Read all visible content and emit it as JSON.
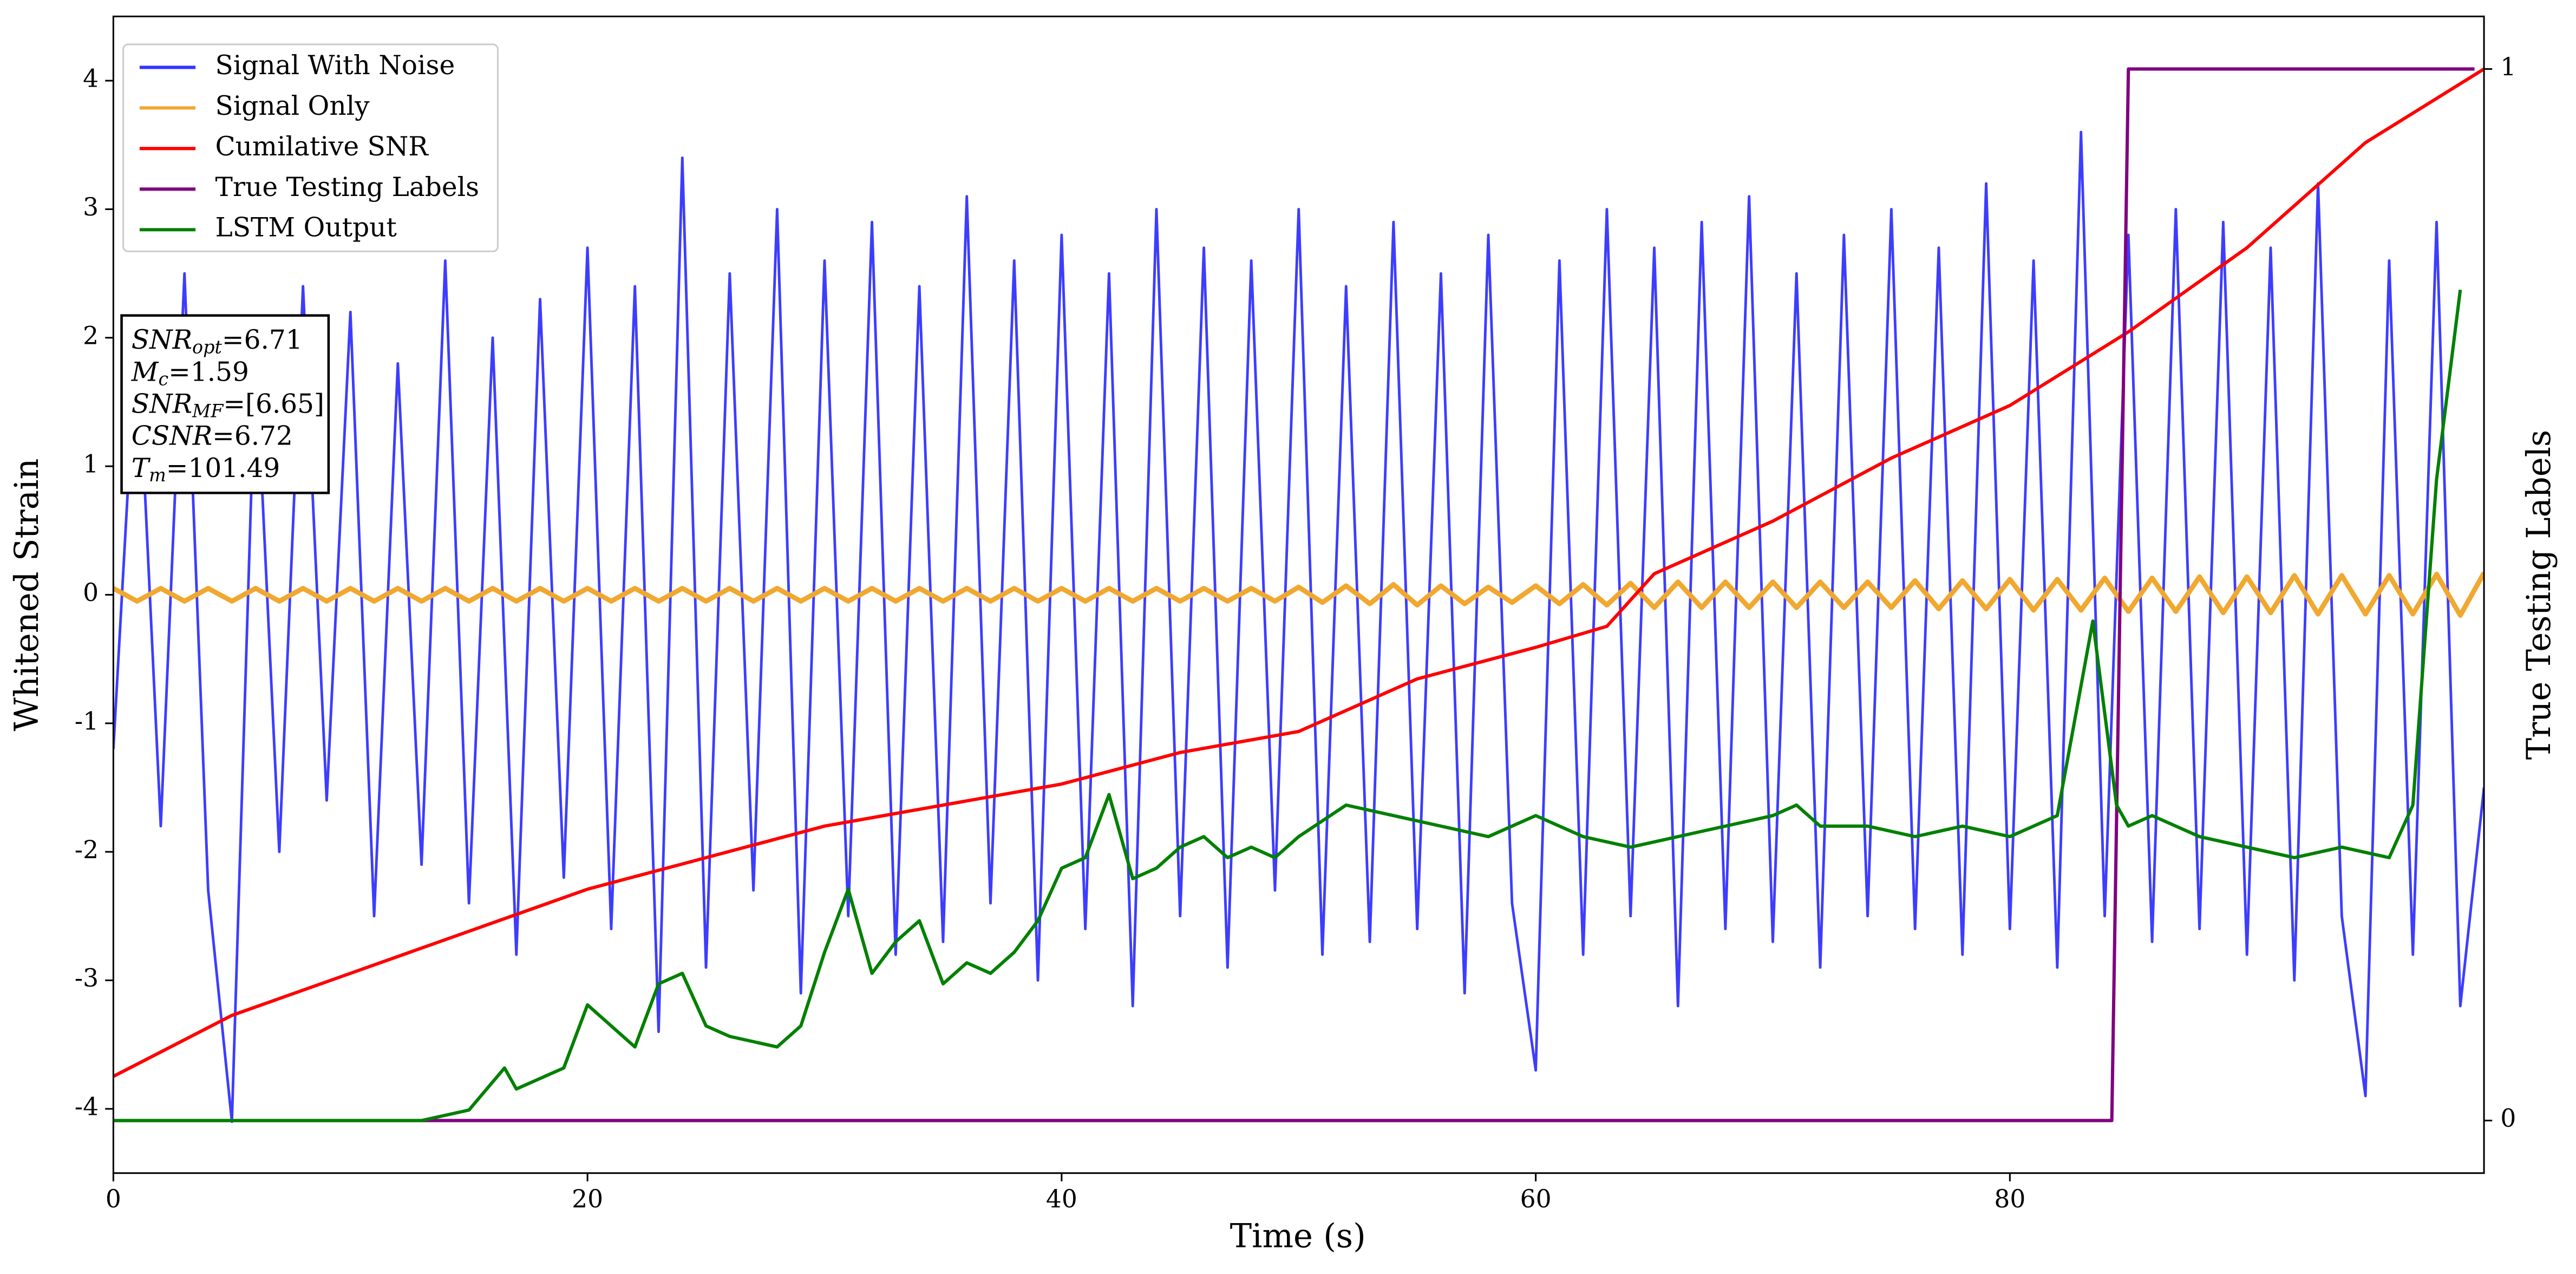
{
  "chart_data": {
    "type": "line",
    "xlabel": "Time (s)",
    "ylabel": "Whitened Strain",
    "y2label": "True Testing Labels",
    "xlim": [
      0,
      100
    ],
    "ylim": [
      -4.5,
      4.5
    ],
    "y2lim": [
      -0.05,
      1.05
    ],
    "xticks": [
      0,
      20,
      40,
      60,
      80
    ],
    "yticks": [
      -4,
      -3,
      -2,
      -1,
      0,
      1,
      2,
      3,
      4
    ],
    "y2ticks": [
      0,
      1
    ],
    "legend": "upper left",
    "x": [
      0,
      1,
      2,
      3,
      4,
      5,
      6,
      7,
      8,
      9,
      10,
      11,
      12,
      13,
      14,
      15,
      16,
      17,
      18,
      19,
      20,
      21,
      22,
      23,
      24,
      25,
      26,
      27,
      28,
      29,
      30,
      31,
      32,
      33,
      34,
      35,
      36,
      37,
      38,
      39,
      40,
      41,
      42,
      43,
      44,
      45,
      46,
      47,
      48,
      49,
      50,
      51,
      52,
      53,
      54,
      55,
      56,
      57,
      58,
      59,
      60,
      61,
      62,
      63,
      64,
      65,
      66,
      67,
      68,
      69,
      70,
      71,
      72,
      73,
      74,
      75,
      76,
      77,
      78,
      79,
      80,
      81,
      82,
      83,
      84,
      85,
      86,
      87,
      88,
      89,
      90,
      91,
      92,
      93,
      94,
      95,
      96,
      97,
      98,
      99,
      100
    ],
    "series": [
      {
        "name": "Signal With Noise",
        "color": "#3333ff",
        "values": [
          -1.2,
          2.1,
          -1.8,
          2.5,
          -2.3,
          -4.1,
          1.9,
          -2.0,
          2.4,
          -1.6,
          2.2,
          -2.5,
          1.8,
          -2.1,
          2.6,
          -2.4,
          2.0,
          -2.8,
          2.3,
          -2.2,
          2.7,
          -2.6,
          2.4,
          -3.4,
          3.4,
          -2.9,
          2.5,
          -2.3,
          3.0,
          -3.1,
          2.6,
          -2.5,
          2.9,
          -2.8,
          2.4,
          -2.7,
          3.1,
          -2.4,
          2.6,
          -3.0,
          2.8,
          -2.6,
          2.5,
          -3.2,
          3.0,
          -2.5,
          2.7,
          -2.9,
          2.6,
          -2.3,
          3.0,
          -2.8,
          2.4,
          -2.7,
          2.9,
          -2.6,
          2.5,
          -3.1,
          2.8,
          -2.4,
          -3.7,
          2.6,
          -2.8,
          3.0,
          -2.5,
          2.7,
          -3.2,
          2.9,
          -2.6,
          3.1,
          -2.7,
          2.5,
          -2.9,
          2.8,
          -2.5,
          3.0,
          -2.6,
          2.7,
          -2.8,
          3.2,
          -2.6,
          2.6,
          -2.9,
          3.6,
          -2.5,
          2.8,
          -2.7,
          3.0,
          -2.6,
          2.9,
          -2.8,
          2.7,
          -3.0,
          3.2,
          -2.5,
          -3.9,
          2.6,
          -2.8,
          2.9,
          -3.2,
          -1.5
        ]
      },
      {
        "name": "Signal Only",
        "color": "#f0a830",
        "values": [
          0.05,
          -0.05,
          0.05,
          -0.05,
          0.05,
          -0.05,
          0.05,
          -0.05,
          0.05,
          -0.05,
          0.05,
          -0.05,
          0.05,
          -0.05,
          0.05,
          -0.05,
          0.05,
          -0.05,
          0.05,
          -0.05,
          0.05,
          -0.05,
          0.05,
          -0.05,
          0.05,
          -0.05,
          0.05,
          -0.05,
          0.05,
          -0.05,
          0.05,
          -0.05,
          0.05,
          -0.05,
          0.05,
          -0.05,
          0.05,
          -0.05,
          0.05,
          -0.05,
          0.05,
          -0.05,
          0.05,
          -0.05,
          0.05,
          -0.05,
          0.05,
          -0.05,
          0.05,
          -0.05,
          0.06,
          -0.06,
          0.07,
          -0.07,
          0.08,
          -0.08,
          0.07,
          -0.07,
          0.06,
          -0.06,
          0.07,
          -0.07,
          0.08,
          -0.08,
          0.09,
          -0.1,
          0.1,
          -0.1,
          0.1,
          -0.1,
          0.1,
          -0.1,
          0.1,
          -0.1,
          0.1,
          -0.1,
          0.11,
          -0.11,
          0.11,
          -0.11,
          0.12,
          -0.12,
          0.12,
          -0.12,
          0.13,
          -0.13,
          0.13,
          -0.13,
          0.14,
          -0.14,
          0.14,
          -0.14,
          0.15,
          -0.15,
          0.15,
          -0.15,
          0.15,
          -0.15,
          0.16,
          -0.16,
          0.17
        ]
      },
      {
        "name": "Cumilative SNR",
        "color": "#ff0000",
        "axis": "y2",
        "x": [
          0,
          5,
          10,
          20,
          30,
          40,
          45,
          50,
          55,
          60,
          63,
          65,
          70,
          75,
          80,
          85,
          90,
          92,
          95,
          100
        ],
        "values": [
          0.042,
          0.1,
          0.14,
          0.22,
          0.28,
          0.32,
          0.35,
          0.37,
          0.42,
          0.45,
          0.47,
          0.52,
          0.57,
          0.63,
          0.68,
          0.75,
          0.83,
          0.87,
          0.93,
          1.0
        ]
      },
      {
        "name": "True Testing Labels",
        "color": "#800080",
        "axis": "y2",
        "x": [
          0,
          84.3,
          85,
          99.6
        ],
        "values": [
          0,
          0,
          1,
          1
        ]
      },
      {
        "name": "LSTM Output",
        "color": "#008000",
        "axis": "y2",
        "x": [
          0,
          13,
          15,
          16.5,
          17,
          18,
          19,
          20,
          21,
          22,
          23,
          24,
          25,
          26,
          28,
          29,
          30,
          31,
          32,
          33,
          34,
          35,
          36,
          37,
          38,
          39,
          40,
          41,
          42,
          43,
          44,
          45,
          46,
          47,
          48,
          49,
          50,
          52,
          54,
          56,
          58,
          60,
          62,
          64,
          66,
          68,
          70,
          71,
          72,
          74,
          76,
          78,
          80,
          82,
          83.5,
          84.5,
          85,
          86,
          88,
          90,
          92,
          94,
          96,
          97,
          98,
          99
        ],
        "values": [
          0,
          0,
          0.01,
          0.05,
          0.03,
          0.04,
          0.05,
          0.11,
          0.09,
          0.07,
          0.13,
          0.14,
          0.09,
          0.08,
          0.07,
          0.09,
          0.16,
          0.22,
          0.14,
          0.17,
          0.19,
          0.13,
          0.15,
          0.14,
          0.16,
          0.19,
          0.24,
          0.25,
          0.31,
          0.23,
          0.24,
          0.26,
          0.27,
          0.25,
          0.26,
          0.25,
          0.27,
          0.3,
          0.29,
          0.28,
          0.27,
          0.29,
          0.27,
          0.26,
          0.27,
          0.28,
          0.29,
          0.3,
          0.28,
          0.28,
          0.27,
          0.28,
          0.27,
          0.29,
          0.475,
          0.3,
          0.28,
          0.29,
          0.27,
          0.26,
          0.25,
          0.26,
          0.25,
          0.3,
          0.61,
          0.79
        ]
      }
    ],
    "annotation": [
      {
        "main": "SNR",
        "sub": "opt",
        "rest": "=6.71"
      },
      {
        "main": "M",
        "sub": "c",
        "rest": "=1.59"
      },
      {
        "main": "SNR",
        "sub": "MF",
        "rest": "=[6.65]"
      },
      {
        "main": "CSNR",
        "sub": "",
        "rest": "=6.72"
      },
      {
        "main": "T",
        "sub": "m",
        "rest": "=101.49"
      }
    ]
  }
}
